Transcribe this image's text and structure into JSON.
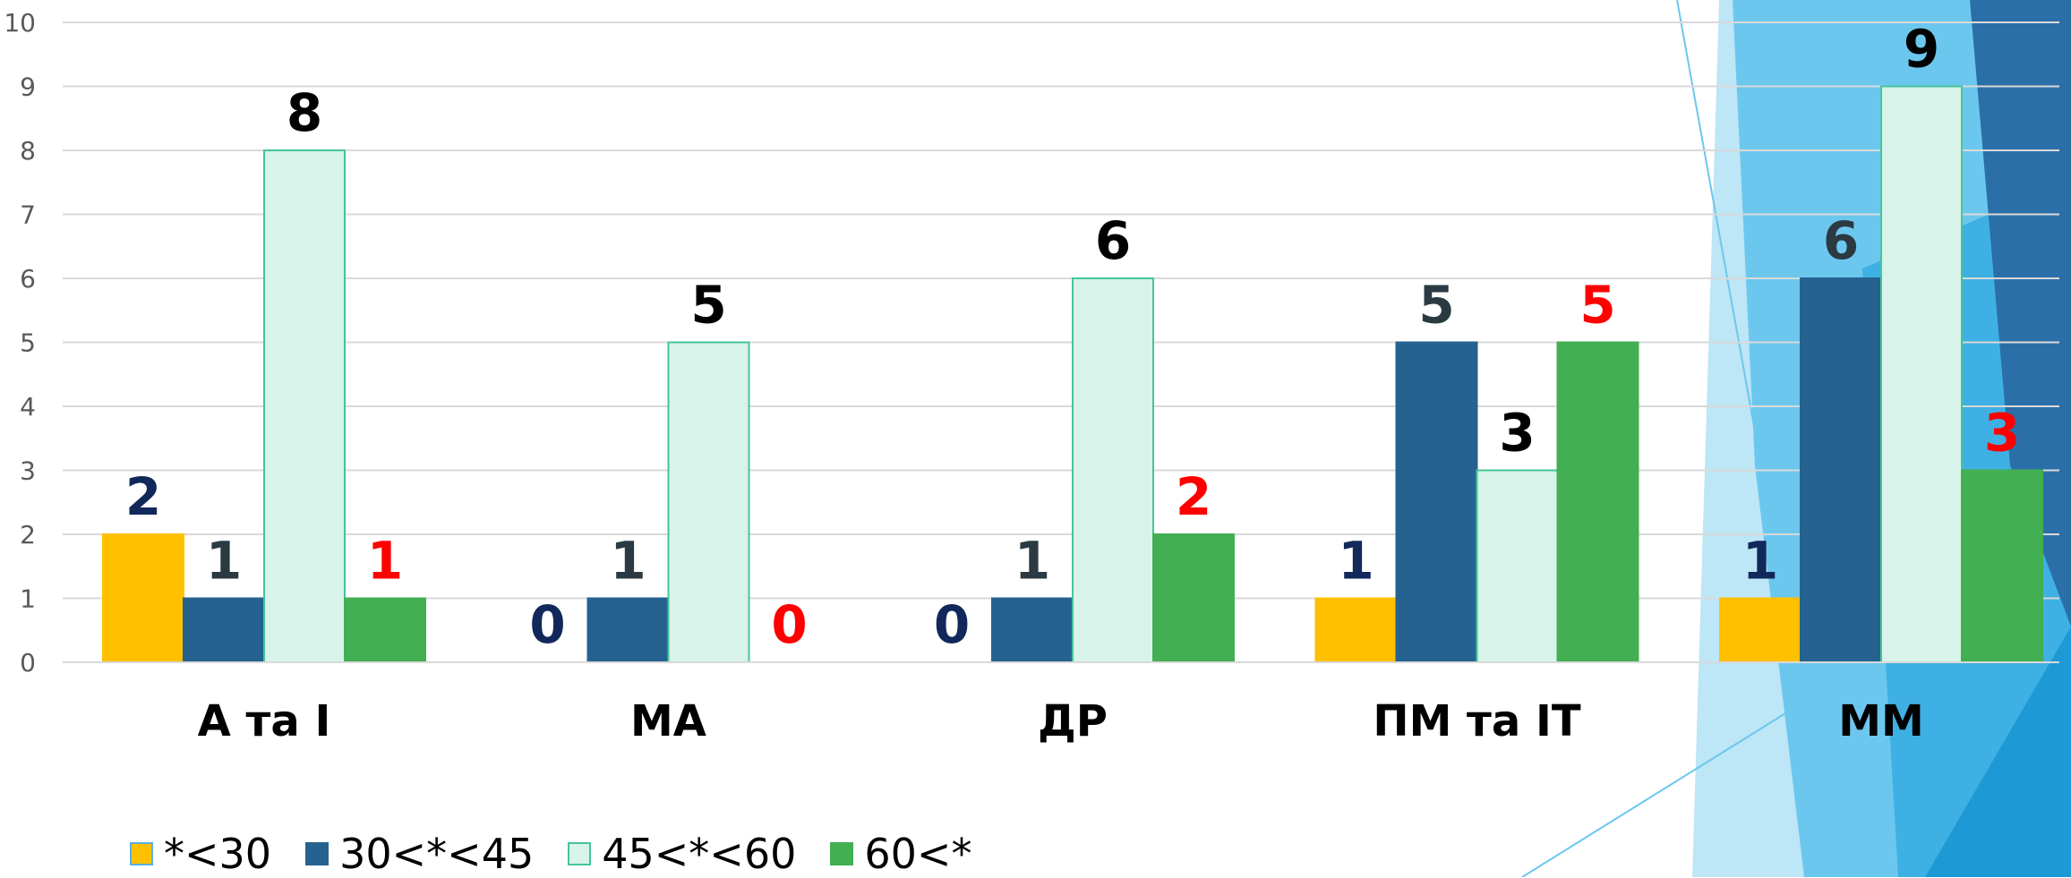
{
  "chart_data": {
    "type": "bar",
    "categories": [
      "А та І",
      "МА",
      "ДР",
      "ПМ та ІТ",
      "ММ"
    ],
    "series": [
      {
        "name": "*<30",
        "values": [
          2,
          0,
          0,
          1,
          1
        ],
        "color": "#FFC000",
        "label_color": "#12285A"
      },
      {
        "name": "30<*<45",
        "values": [
          1,
          1,
          1,
          5,
          6
        ],
        "color": "#256290",
        "label_color": "#2B3A42"
      },
      {
        "name": "45<*<60",
        "values": [
          8,
          5,
          6,
          3,
          9
        ],
        "color": "#D8F3EA",
        "label_color": "#000000"
      },
      {
        "name": "60<*",
        "values": [
          1,
          0,
          2,
          5,
          3
        ],
        "color": "#42AF52",
        "label_color": "#FF0000"
      }
    ],
    "yticks": [
      "0",
      "1",
      "2",
      "3",
      "4",
      "5",
      "6",
      "7",
      "8",
      "9",
      "10"
    ],
    "ylim": [
      0,
      10
    ],
    "grid": true,
    "legend": "bottom-left",
    "title": "",
    "xlabel": "",
    "ylabel": ""
  }
}
